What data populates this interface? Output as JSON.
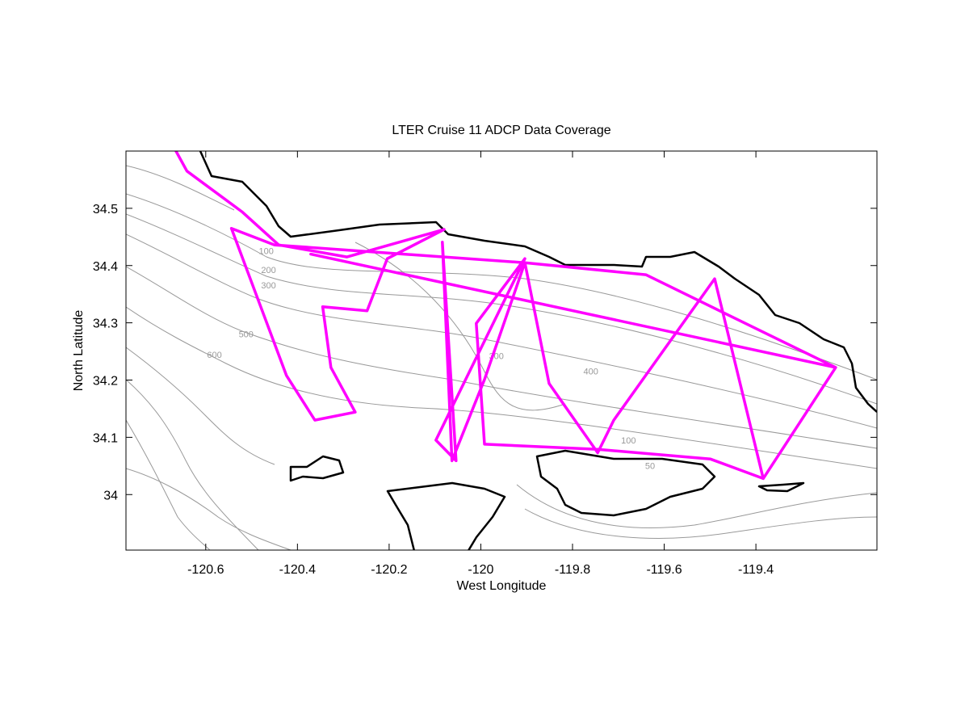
{
  "chart_data": {
    "type": "line",
    "title": "LTER Cruise 11 ADCP Data Coverage",
    "x_label": "West Longitude",
    "y_label": "North Latitude",
    "color": "#ff00ff",
    "xlim": [
      -120.774,
      -119.136
    ],
    "ylim": [
      33.903,
      34.6
    ],
    "xticks": [
      -120.6,
      -120.4,
      -120.2,
      -120,
      -119.8,
      -119.6,
      -119.4
    ],
    "yticks": [
      34,
      34.1,
      34.2,
      34.3,
      34.4,
      34.5
    ],
    "x": [
      -120.665,
      -120.641,
      -120.521,
      -120.441,
      -120.292,
      -120.08,
      -120.204,
      -120.248,
      -120.345,
      -120.327,
      -120.274,
      -120.362,
      -120.424,
      -120.544,
      -120.45,
      -119.904,
      -119.64,
      -119.226,
      -119.384,
      -119.49,
      -119.71,
      -119.745,
      -119.851,
      -119.904,
      -119.992,
      -120.063,
      -120.084,
      -120.054,
      -120.098,
      -119.904,
      -120.01,
      -119.992,
      -119.745,
      -119.499,
      -119.384,
      null,
      -120.371,
      -119.226
    ],
    "values": [
      34.6,
      34.565,
      34.494,
      34.436,
      34.415,
      34.463,
      34.412,
      34.321,
      34.328,
      34.222,
      34.144,
      34.13,
      34.208,
      34.465,
      34.436,
      34.405,
      34.384,
      34.222,
      34.028,
      34.377,
      34.13,
      34.073,
      34.194,
      34.405,
      34.201,
      34.059,
      34.441,
      34.059,
      34.095,
      34.412,
      34.299,
      34.088,
      34.079,
      34.062,
      34.028,
      null,
      34.42,
      34.222
    ],
    "contour_labels": [
      {
        "text": "100",
        "x": -120.468,
        "y": 34.42
      },
      {
        "text": "200",
        "x": -120.463,
        "y": 34.387
      },
      {
        "text": "300",
        "x": -120.463,
        "y": 34.36
      },
      {
        "text": "500",
        "x": -120.512,
        "y": 34.275
      },
      {
        "text": "600",
        "x": -120.581,
        "y": 34.239
      },
      {
        "text": "300",
        "x": -119.966,
        "y": 34.237
      },
      {
        "text": "400",
        "x": -119.76,
        "y": 34.21
      },
      {
        "text": "100",
        "x": -119.678,
        "y": 34.089
      },
      {
        "text": "50",
        "x": -119.631,
        "y": 34.045
      }
    ]
  }
}
